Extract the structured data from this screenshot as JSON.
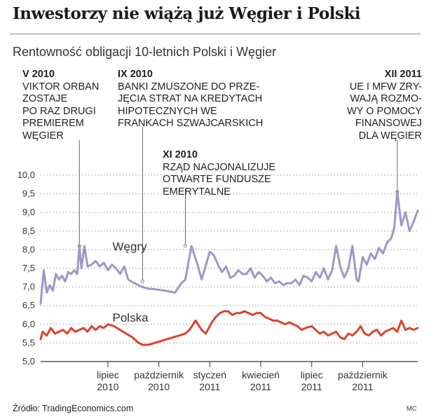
{
  "header": {
    "title": "Inwestorzy nie wiążą już Węgier i Polski",
    "subtitle": "Rentowność obligacji 10-letnich Polski i Węgier"
  },
  "annotations": [
    {
      "date": "V 2010",
      "text": "VIKTOR ORBAN\nZOSTAJE\nPO RAZ DRUGI\nPREMIEREM\nWĘGIER",
      "x": 2010.36,
      "y": 8.1
    },
    {
      "date": "IX 2010",
      "text": "BANKI ZMUSZONE DO PRZE-\nJĘCIA STRAT NA KREDYTACH\nHIPOTECZNYCH WE\nFRANKACH SZWAJCARSKICH",
      "x": 2010.67,
      "y": 7.15
    },
    {
      "date": "XI 2010",
      "text": "RZĄD NACJONALIZUJE\nOTWARTE FUNDUSZE\nEMERYTALNE",
      "x": 2010.88,
      "y": 8.1
    },
    {
      "date": "XII 2011",
      "text": "UE I MFW ZRY-\nWAJĄ ROZMO-\nWY O POMOCY\nFINANSOWEJ\nDLA WĘGIER",
      "x": 2011.92,
      "y": 9.55
    }
  ],
  "chart_data": {
    "type": "line",
    "ylim": [
      5.0,
      10.0
    ],
    "xlim": [
      2010.17,
      2012.02
    ],
    "y_ticks": [
      {
        "value": 5.0,
        "label": "5,0"
      },
      {
        "value": 5.5,
        "label": "5,5"
      },
      {
        "value": 6.0,
        "label": "6,0"
      },
      {
        "value": 6.5,
        "label": "6,5"
      },
      {
        "value": 7.0,
        "label": "7,0"
      },
      {
        "value": 7.5,
        "label": "7,5"
      },
      {
        "value": 8.0,
        "label": "8,0"
      },
      {
        "value": 8.5,
        "label": "8,5"
      },
      {
        "value": 9.0,
        "label": "9,0"
      },
      {
        "value": 9.5,
        "label": "9,5"
      },
      {
        "value": 10.0,
        "label": "10,0"
      }
    ],
    "x_ticks": [
      {
        "value": 2010.5,
        "label1": "lipiec",
        "label2": "2010"
      },
      {
        "value": 2010.75,
        "label1": "październik",
        "label2": "2010"
      },
      {
        "value": 2011.0,
        "label1": "styczeń",
        "label2": "2011"
      },
      {
        "value": 2011.25,
        "label1": "kwiecień",
        "label2": "2011"
      },
      {
        "value": 2011.5,
        "label1": "lipiec",
        "label2": "2011"
      },
      {
        "value": 2011.75,
        "label1": "październik",
        "label2": "2011"
      }
    ],
    "series": [
      {
        "name": "Węgry",
        "color": "#9b98c9",
        "label_at": {
          "x": 2010.55,
          "y": 7.9
        },
        "x": [
          2010.17,
          2010.185,
          2010.2,
          2010.215,
          2010.23,
          2010.245,
          2010.26,
          2010.275,
          2010.29,
          2010.305,
          2010.32,
          2010.335,
          2010.35,
          2010.36,
          2010.37,
          2010.385,
          2010.4,
          2010.42,
          2010.44,
          2010.46,
          2010.48,
          2010.5,
          2010.52,
          2010.54,
          2010.56,
          2010.58,
          2010.6,
          2010.63,
          2010.67,
          2010.7,
          2010.72,
          2010.78,
          2010.83,
          2010.86,
          2010.88,
          2010.91,
          2010.94,
          2010.96,
          2011.0,
          2011.02,
          2011.04,
          2011.06,
          2011.08,
          2011.1,
          2011.12,
          2011.14,
          2011.16,
          2011.18,
          2011.2,
          2011.22,
          2011.24,
          2011.26,
          2011.28,
          2011.3,
          2011.32,
          2011.34,
          2011.36,
          2011.38,
          2011.4,
          2011.42,
          2011.44,
          2011.46,
          2011.48,
          2011.5,
          2011.52,
          2011.54,
          2011.56,
          2011.58,
          2011.6,
          2011.62,
          2011.64,
          2011.66,
          2011.68,
          2011.7,
          2011.72,
          2011.73,
          2011.75,
          2011.77,
          2011.79,
          2011.81,
          2011.83,
          2011.85,
          2011.87,
          2011.89,
          2011.905,
          2011.92,
          2011.94,
          2011.96,
          2011.98,
          2012.0,
          2012.02
        ],
        "y": [
          6.55,
          7.45,
          6.85,
          7.05,
          6.9,
          7.35,
          7.2,
          7.3,
          7.15,
          7.4,
          7.35,
          7.45,
          7.35,
          8.1,
          7.5,
          8.1,
          7.55,
          7.6,
          7.7,
          7.55,
          7.65,
          7.45,
          7.6,
          7.5,
          7.35,
          7.55,
          7.2,
          7.1,
          7.0,
          6.95,
          6.95,
          6.9,
          6.85,
          7.1,
          7.2,
          8.1,
          7.6,
          7.2,
          7.95,
          7.85,
          7.6,
          7.4,
          7.55,
          7.25,
          7.3,
          7.45,
          7.35,
          7.35,
          7.5,
          7.25,
          7.4,
          7.3,
          7.15,
          7.25,
          7.1,
          7.15,
          7.05,
          7.1,
          7.1,
          7.2,
          7.05,
          7.3,
          7.25,
          7.15,
          7.4,
          7.25,
          7.5,
          7.2,
          7.45,
          8.1,
          7.55,
          7.25,
          7.5,
          8.1,
          7.2,
          7.15,
          7.8,
          7.6,
          7.9,
          7.75,
          8.05,
          7.9,
          8.2,
          8.3,
          8.6,
          9.55,
          8.65,
          9.0,
          8.5,
          8.75,
          9.05
        ]
      },
      {
        "name": "Polska",
        "color": "#d9442f",
        "label_at": {
          "x": 2010.55,
          "y": 6.0
        },
        "x": [
          2010.17,
          2010.18,
          2010.2,
          2010.22,
          2010.24,
          2010.26,
          2010.28,
          2010.3,
          2010.32,
          2010.34,
          2010.36,
          2010.38,
          2010.4,
          2010.42,
          2010.44,
          2010.46,
          2010.48,
          2010.5,
          2010.53,
          2010.56,
          2010.59,
          2010.62,
          2010.65,
          2010.67,
          2010.7,
          2010.73,
          2010.76,
          2010.79,
          2010.82,
          2010.85,
          2010.88,
          2010.9,
          2010.93,
          2010.96,
          2010.98,
          2011.01,
          2011.03,
          2011.05,
          2011.07,
          2011.09,
          2011.11,
          2011.13,
          2011.15,
          2011.17,
          2011.19,
          2011.21,
          2011.23,
          2011.25,
          2011.27,
          2011.29,
          2011.31,
          2011.33,
          2011.35,
          2011.37,
          2011.39,
          2011.41,
          2011.43,
          2011.45,
          2011.47,
          2011.5,
          2011.52,
          2011.54,
          2011.56,
          2011.58,
          2011.6,
          2011.62,
          2011.64,
          2011.66,
          2011.68,
          2011.7,
          2011.72,
          2011.74,
          2011.76,
          2011.78,
          2011.8,
          2011.82,
          2011.84,
          2011.86,
          2011.88,
          2011.9,
          2011.92,
          2011.94,
          2011.96,
          2011.98,
          2012.0,
          2012.02
        ],
        "y": [
          5.6,
          5.8,
          5.7,
          5.9,
          5.75,
          5.8,
          5.85,
          5.75,
          5.9,
          5.8,
          5.85,
          5.9,
          5.8,
          5.95,
          5.85,
          5.95,
          5.9,
          6.0,
          5.95,
          5.85,
          5.75,
          5.65,
          5.5,
          5.45,
          5.45,
          5.5,
          5.55,
          5.6,
          5.65,
          5.7,
          5.75,
          5.85,
          6.1,
          5.85,
          5.75,
          6.05,
          6.2,
          6.3,
          6.35,
          6.35,
          6.25,
          6.3,
          6.3,
          6.35,
          6.3,
          6.25,
          6.3,
          6.3,
          6.2,
          6.15,
          6.1,
          6.1,
          6.05,
          6.0,
          6.05,
          6.0,
          5.95,
          5.85,
          5.9,
          5.95,
          5.85,
          5.75,
          5.8,
          5.7,
          5.75,
          5.8,
          5.65,
          5.6,
          5.75,
          5.7,
          5.8,
          5.95,
          5.75,
          5.7,
          5.8,
          5.85,
          5.7,
          5.8,
          5.85,
          5.9,
          5.8,
          6.1,
          5.85,
          5.9,
          5.85,
          5.9
        ]
      }
    ]
  },
  "footer": {
    "source": "Źródło: TradingEconomics.com",
    "credit": "MC"
  }
}
